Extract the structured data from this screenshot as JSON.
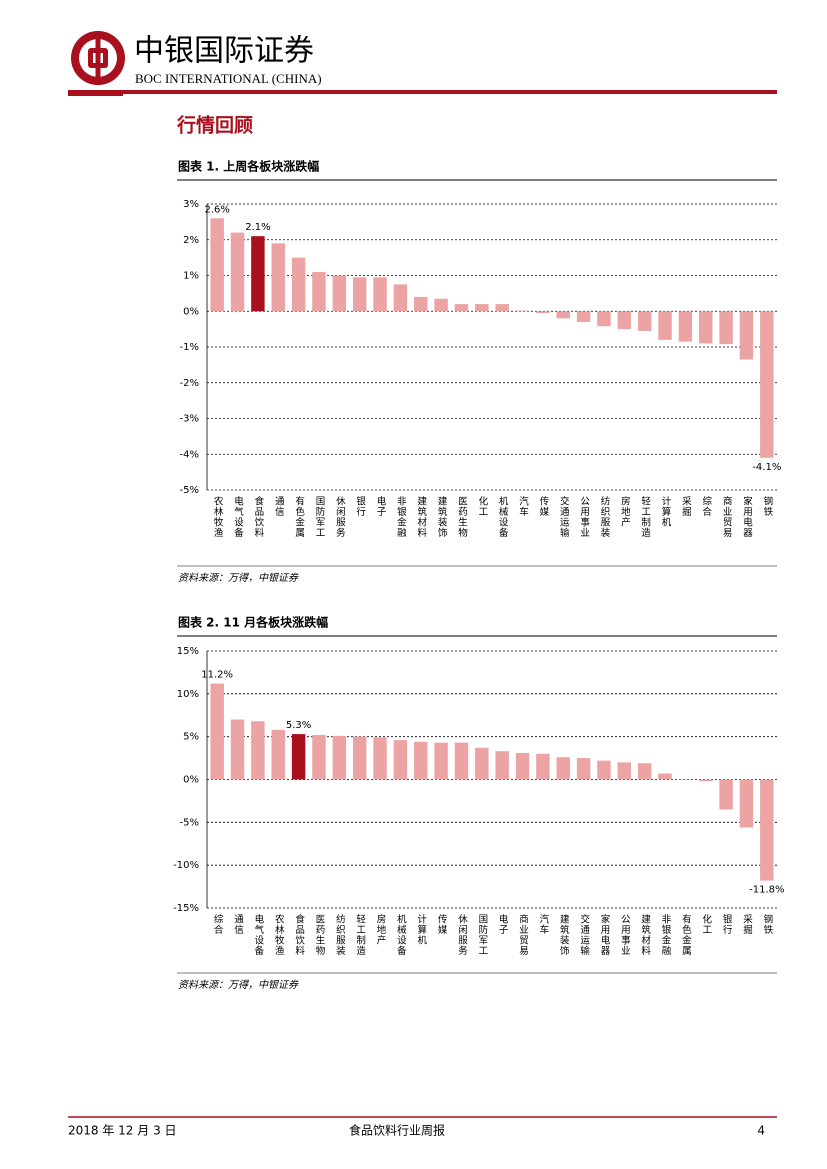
{
  "header": {
    "company_cn": "中银国际证券",
    "company_en": "BOC INTERNATIONAL (CHINA)"
  },
  "section_title": "行情回顾",
  "chart_data": [
    {
      "type": "bar",
      "title": "图表 1. 上周各板块涨跌幅",
      "categories": [
        "农林牧渔",
        "电气设备",
        "食品饮料",
        "通信",
        "有色金属",
        "国防军工",
        "休闲服务",
        "银行",
        "电子",
        "非银金融",
        "建筑材料",
        "建筑装饰",
        "医药生物",
        "化工",
        "机械设备",
        "汽车",
        "传媒",
        "交通运输",
        "公用事业",
        "纺织服装",
        "房地产",
        "轻工制造",
        "计算机",
        "采掘",
        "综合",
        "商业贸易",
        "家用电器",
        "钢铁"
      ],
      "values": [
        2.6,
        2.2,
        2.1,
        1.9,
        1.5,
        1.1,
        1.0,
        0.95,
        0.95,
        0.75,
        0.4,
        0.35,
        0.2,
        0.2,
        0.2,
        0.02,
        -0.05,
        -0.2,
        -0.3,
        -0.42,
        -0.5,
        -0.55,
        -0.8,
        -0.85,
        -0.9,
        -0.92,
        -1.35,
        -4.1
      ],
      "value_labels": [
        "2.6%",
        null,
        "2.1%",
        null,
        null,
        null,
        null,
        null,
        null,
        null,
        null,
        null,
        null,
        null,
        null,
        null,
        null,
        null,
        null,
        null,
        null,
        null,
        null,
        null,
        null,
        null,
        null,
        "-4.1%"
      ],
      "colors": [
        "#eba3a3",
        "#eba3a3",
        "#a8101e",
        "#eba3a3",
        "#eba3a3",
        "#eba3a3",
        "#eba3a3",
        "#eba3a3",
        "#eba3a3",
        "#eba3a3",
        "#eba3a3",
        "#eba3a3",
        "#eba3a3",
        "#eba3a3",
        "#eba3a3",
        "#eba3a3",
        "#eba3a3",
        "#eba3a3",
        "#eba3a3",
        "#eba3a3",
        "#eba3a3",
        "#eba3a3",
        "#eba3a3",
        "#eba3a3",
        "#eba3a3",
        "#eba3a3",
        "#eba3a3",
        "#eba3a3"
      ],
      "ylim": [
        -5,
        3
      ],
      "yticks": [
        {
          "value": -5,
          "label": "-5%"
        },
        {
          "value": -4,
          "label": "-4%"
        },
        {
          "value": -3,
          "label": "-3%"
        },
        {
          "value": -2,
          "label": "-2%"
        },
        {
          "value": -1,
          "label": "-1%"
        },
        {
          "value": 0,
          "label": "0%"
        },
        {
          "value": 1,
          "label": "1%"
        },
        {
          "value": 2,
          "label": "2%"
        },
        {
          "value": 3,
          "label": "3%"
        }
      ],
      "grid": true,
      "source": "资料来源：万得，中银证券"
    },
    {
      "type": "bar",
      "title": "图表 2. 11 月各板块涨跌幅",
      "categories": [
        "综合",
        "通信",
        "电气设备",
        "农林牧渔",
        "食品饮料",
        "医药生物",
        "纺织服装",
        "轻工制造",
        "房地产",
        "机械设备",
        "计算机",
        "传媒",
        "休闲服务",
        "国防军工",
        "电子",
        "商业贸易",
        "汽车",
        "建筑装饰",
        "交通运输",
        "家用电器",
        "公用事业",
        "建筑材料",
        "非银金融",
        "有色金属",
        "化工",
        "银行",
        "采掘",
        "钢铁"
      ],
      "values": [
        11.2,
        7.0,
        6.8,
        5.8,
        5.3,
        5.2,
        5.1,
        5.0,
        4.9,
        4.6,
        4.4,
        4.3,
        4.3,
        3.7,
        3.3,
        3.1,
        3.0,
        2.6,
        2.5,
        2.2,
        2.0,
        1.9,
        0.7,
        0.05,
        -0.2,
        -3.5,
        -5.6,
        -11.8
      ],
      "value_labels": [
        "11.2%",
        null,
        null,
        null,
        "5.3%",
        null,
        null,
        null,
        null,
        null,
        null,
        null,
        null,
        null,
        null,
        null,
        null,
        null,
        null,
        null,
        null,
        null,
        null,
        null,
        null,
        null,
        null,
        "-11.8%"
      ],
      "colors": [
        "#eba3a3",
        "#eba3a3",
        "#eba3a3",
        "#eba3a3",
        "#a8101e",
        "#eba3a3",
        "#eba3a3",
        "#eba3a3",
        "#eba3a3",
        "#eba3a3",
        "#eba3a3",
        "#eba3a3",
        "#eba3a3",
        "#eba3a3",
        "#eba3a3",
        "#eba3a3",
        "#eba3a3",
        "#eba3a3",
        "#eba3a3",
        "#eba3a3",
        "#eba3a3",
        "#eba3a3",
        "#eba3a3",
        "#eba3a3",
        "#eba3a3",
        "#eba3a3",
        "#eba3a3",
        "#eba3a3"
      ],
      "ylim": [
        -15,
        15
      ],
      "yticks": [
        {
          "value": -15,
          "label": "-15%"
        },
        {
          "value": -10,
          "label": "-10%"
        },
        {
          "value": -5,
          "label": "-5%"
        },
        {
          "value": 0,
          "label": "0%"
        },
        {
          "value": 5,
          "label": "5%"
        },
        {
          "value": 10,
          "label": "10%"
        },
        {
          "value": 15,
          "label": "15%"
        }
      ],
      "grid": true,
      "source": "资料来源：万得，中银证券"
    }
  ],
  "footer": {
    "date": "2018 年 12 月 3 日",
    "report": "食品饮料行业周报",
    "page": 4
  }
}
